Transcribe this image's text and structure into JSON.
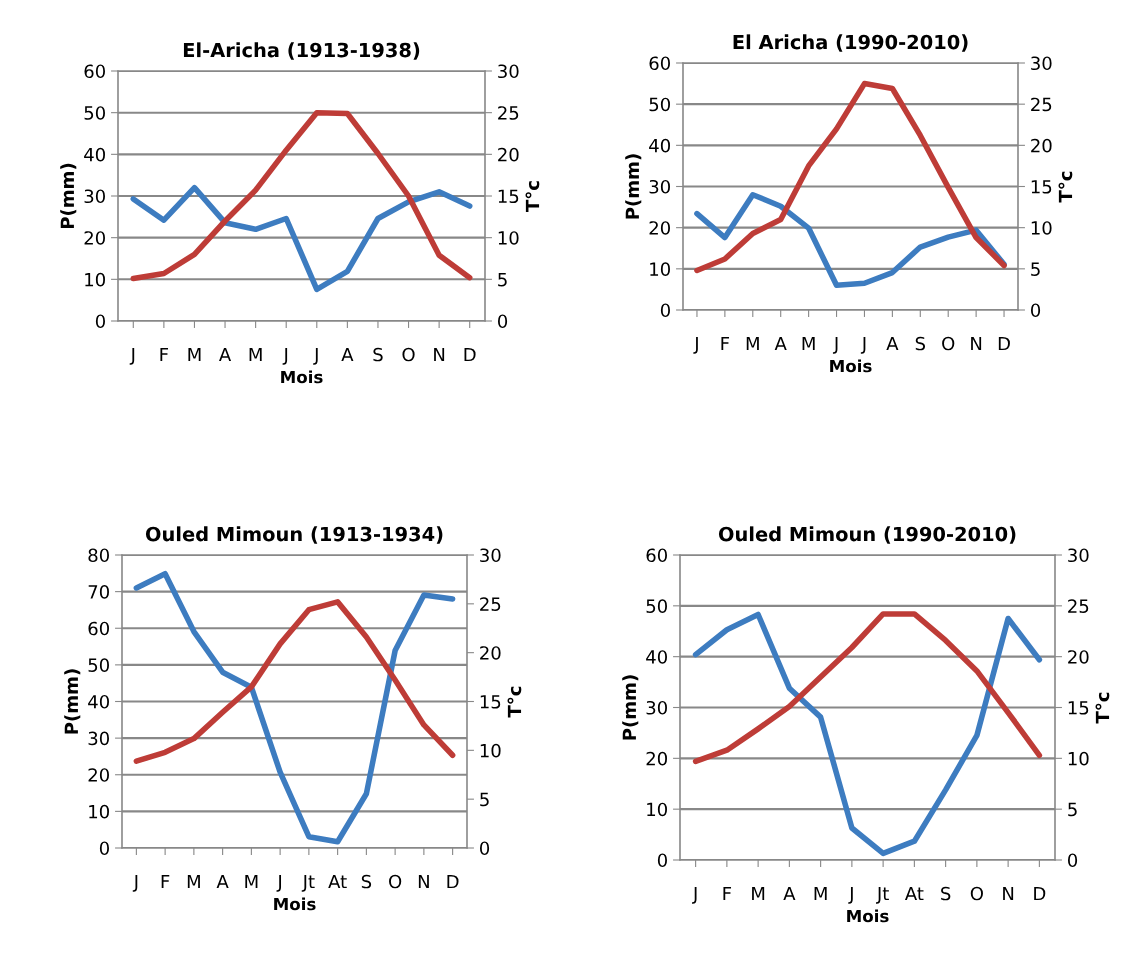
{
  "chart_data": [
    {
      "type": "line",
      "title": "El-Aricha (1913-1938)",
      "xlabel": "Mois",
      "ylabel": "P(mm)",
      "y2label": "T°c",
      "categories": [
        "J",
        "F",
        "M",
        "A",
        "M",
        "J",
        "J",
        "A",
        "S",
        "O",
        "N",
        "D"
      ],
      "series": [
        {
          "color": "#3d7cc0",
          "values": [
            29.3,
            24.2,
            32,
            23.6,
            22,
            24.6,
            7.6,
            11.9,
            24.6,
            28.6,
            31,
            27.6
          ]
        },
        {
          "color": "#be3c37",
          "axis": "y2",
          "values": [
            5.1,
            5.7,
            8,
            12,
            15.7,
            20.5,
            25,
            24.9,
            20.1,
            15,
            7.9,
            5.2
          ]
        }
      ],
      "ylim": [
        0,
        60
      ],
      "yticks": [
        0,
        10,
        20,
        30,
        40,
        50,
        60
      ],
      "y2lim": [
        0,
        30
      ],
      "y2ticks": [
        0,
        5,
        10,
        15,
        20,
        25,
        30
      ],
      "grid": "y",
      "marker": "none",
      "line_style": "solid"
    },
    {
      "type": "line",
      "title": "El Aricha (1990-2010)",
      "xlabel": "Mois",
      "ylabel": "P(mm)",
      "y2label": "T°c",
      "categories": [
        "J",
        "F",
        "M",
        "A",
        "M",
        "J",
        "J",
        "A",
        "S",
        "O",
        "N",
        "D"
      ],
      "series": [
        {
          "color": "#3d7cc0",
          "values": [
            23.4,
            17.6,
            28,
            25.2,
            19.9,
            6,
            6.5,
            9.1,
            15.3,
            17.7,
            19.4,
            11.1
          ]
        },
        {
          "color": "#be3c37",
          "axis": "y2",
          "values": [
            4.8,
            6.2,
            9.3,
            11,
            17.5,
            22,
            27.5,
            26.9,
            21.2,
            14.9,
            8.8,
            5.4
          ]
        }
      ],
      "ylim": [
        0,
        60
      ],
      "yticks": [
        0,
        10,
        20,
        30,
        40,
        50,
        60
      ],
      "y2lim": [
        0,
        30
      ],
      "y2ticks": [
        0,
        5,
        10,
        15,
        20,
        25,
        30
      ],
      "grid": "y",
      "marker": "none",
      "line_style": "solid"
    },
    {
      "type": "line",
      "title": "Ouled Mimoun (1913-1934)",
      "xlabel": "Mois",
      "ylabel": "P(mm)",
      "y2label": "T°c",
      "categories": [
        "J",
        "F",
        "M",
        "A",
        "M",
        "J",
        "Jt",
        "At",
        "S",
        "O",
        "N",
        "D"
      ],
      "series": [
        {
          "color": "#3d7cc0",
          "values": [
            71,
            74.9,
            59.1,
            48,
            43.9,
            20.7,
            3.1,
            1.7,
            14.8,
            53.9,
            69.1,
            68
          ]
        },
        {
          "color": "#be3c37",
          "axis": "y2",
          "values": [
            8.9,
            9.8,
            11.2,
            13.9,
            16.5,
            20.9,
            24.4,
            25.2,
            21.6,
            17.2,
            12.6,
            9.5
          ]
        }
      ],
      "ylim": [
        0,
        80
      ],
      "yticks": [
        0,
        10,
        20,
        30,
        40,
        50,
        60,
        70,
        80
      ],
      "y2lim": [
        0,
        30
      ],
      "y2ticks": [
        0,
        5,
        10,
        15,
        20,
        25,
        30
      ],
      "grid": "y",
      "marker": "none",
      "line_style": "solid"
    },
    {
      "type": "line",
      "title": "Ouled Mimoun (1990-2010)",
      "xlabel": "Mois",
      "ylabel": "P(mm)",
      "y2label": "T°c",
      "categories": [
        "J",
        "F",
        "M",
        "A",
        "M",
        "J",
        "Jt",
        "At",
        "S",
        "O",
        "N",
        "D"
      ],
      "series": [
        {
          "color": "#3d7cc0",
          "values": [
            40.4,
            45.3,
            48.3,
            33.8,
            28.1,
            6.3,
            1.3,
            3.7,
            13.8,
            24.5,
            47.5,
            39.4
          ]
        },
        {
          "color": "#be3c37",
          "axis": "y2",
          "values": [
            9.7,
            10.8,
            12.9,
            15.1,
            18,
            20.9,
            24.2,
            24.2,
            21.6,
            18.6,
            14.5,
            10.3
          ]
        }
      ],
      "ylim": [
        0,
        60
      ],
      "yticks": [
        0,
        10,
        20,
        30,
        40,
        50,
        60
      ],
      "y2lim": [
        0,
        30
      ],
      "y2ticks": [
        0,
        5,
        10,
        15,
        20,
        25,
        30
      ],
      "grid": "y",
      "marker": "none",
      "line_style": "solid"
    }
  ]
}
